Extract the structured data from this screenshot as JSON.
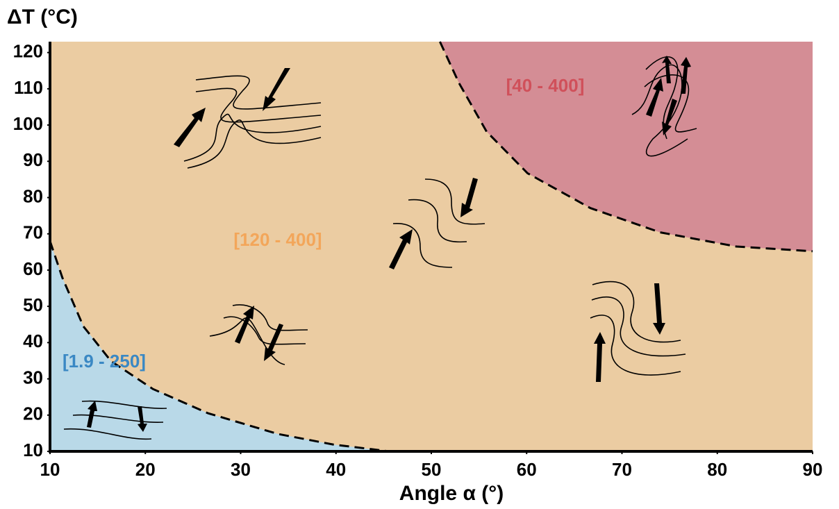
{
  "chart_data": {
    "type": "area",
    "y_label": "ΔT (°C)",
    "x_label": "Angle α (°)",
    "xlim": [
      10,
      90
    ],
    "xticks": [
      10,
      20,
      30,
      40,
      50,
      60,
      70,
      80,
      90
    ],
    "ylim": [
      10,
      123
    ],
    "yticks": [
      10,
      20,
      30,
      40,
      50,
      60,
      70,
      80,
      90,
      100,
      110,
      120
    ],
    "background_color": "#ebcca2",
    "regions": [
      {
        "label": "[1.9 - 250]",
        "color": "#b9d9e8",
        "label_color": "#3a88c4",
        "boundary_x": [
          10,
          11.3,
          13.5,
          16.4,
          20.8,
          26.6,
          33.9,
          39.7,
          45.6
        ],
        "boundary_y": [
          68,
          57.9,
          44.5,
          34.9,
          27.2,
          20.5,
          14.8,
          11.9,
          10
        ]
      },
      {
        "label": "[120 - 400]",
        "color": "#ebcca2",
        "label_color": "#f3a65a"
      },
      {
        "label": "[40 - 400]",
        "color": "#d48d95",
        "label_color": "#d0505a",
        "boundary_x": [
          50.9,
          52.9,
          55.8,
          60.1,
          66.7,
          74,
          82,
          90
        ],
        "boundary_y": [
          123,
          111.6,
          98.2,
          86.7,
          77.1,
          70.4,
          66.5,
          65.2
        ]
      }
    ]
  }
}
